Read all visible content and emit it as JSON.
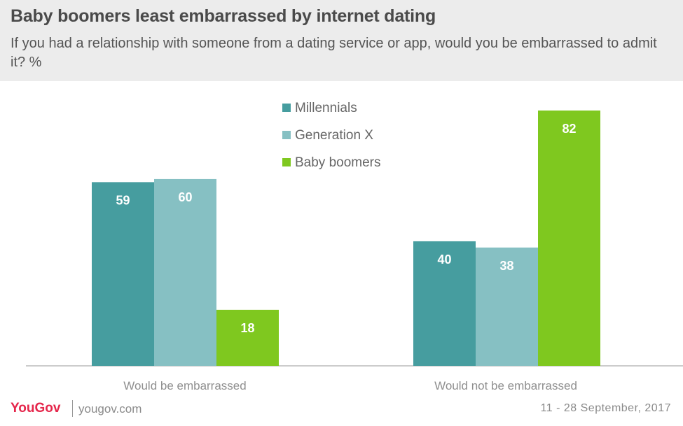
{
  "header": {
    "title": "Baby boomers least embarrassed by internet dating",
    "subtitle": "If you had a relationship with someone from a dating service or app, would you be embarrassed to admit it? %"
  },
  "chart_data": {
    "type": "bar",
    "categories": [
      "Would be embarrassed",
      "Would not be embarrassed"
    ],
    "series": [
      {
        "name": "Millennials",
        "values": [
          59,
          40
        ],
        "color": "#469d9f"
      },
      {
        "name": "Generation X",
        "values": [
          60,
          38
        ],
        "color": "#86c0c3"
      },
      {
        "name": "Baby boomers",
        "values": [
          18,
          82
        ],
        "color": "#7fc81f"
      }
    ],
    "ylim": [
      0,
      82
    ],
    "grid": false,
    "legend_position": "top-center",
    "value_labels": true
  },
  "footer": {
    "logo": "YouGov",
    "site": "yougov.com",
    "date": "11 - 28 September, 2017"
  },
  "colors": {
    "header_bg": "#ececec",
    "brand": "#e5264b"
  }
}
